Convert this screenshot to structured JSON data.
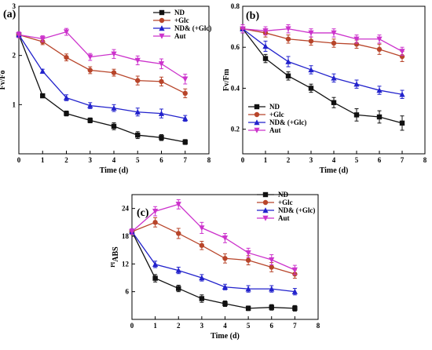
{
  "colors": {
    "ND": "#111111",
    "Glc": "#b8452a",
    "NDGlc": "#2222cc",
    "Aut": "#cc33cc"
  },
  "chart_data": [
    {
      "id": "a",
      "type": "line",
      "panel_label": "(a)",
      "xlabel": "Time (d)",
      "ylabel": "Fv/Fo",
      "xlim": [
        0,
        8
      ],
      "ylim": [
        0,
        3
      ],
      "xticks": [
        0,
        1,
        2,
        3,
        4,
        5,
        6,
        7,
        8
      ],
      "yticks": [
        1,
        2,
        3
      ],
      "legend_position": "top-right",
      "x": [
        0,
        1,
        2,
        3,
        4,
        5,
        6,
        7
      ],
      "series": [
        {
          "name": "ND",
          "key": "ND",
          "marker": "square",
          "values": [
            2.42,
            1.18,
            0.82,
            0.68,
            0.56,
            0.38,
            0.33,
            0.24
          ],
          "errors": [
            0.05,
            0.04,
            0.05,
            0.05,
            0.07,
            0.07,
            0.06,
            0.05
          ]
        },
        {
          "name": "+Glc",
          "key": "Glc",
          "marker": "circle",
          "values": [
            2.42,
            2.28,
            1.96,
            1.7,
            1.65,
            1.49,
            1.47,
            1.23
          ],
          "errors": [
            0.05,
            0.06,
            0.07,
            0.07,
            0.07,
            0.09,
            0.09,
            0.09
          ]
        },
        {
          "name": "ND& (+Glc)",
          "key": "NDGlc",
          "marker": "triangle-up",
          "values": [
            2.42,
            1.68,
            1.14,
            0.98,
            0.93,
            0.85,
            0.82,
            0.72
          ],
          "errors": [
            0.05,
            0.04,
            0.06,
            0.06,
            0.07,
            0.08,
            0.09,
            0.06
          ]
        },
        {
          "name": "Aut",
          "key": "Aut",
          "marker": "triangle-down",
          "values": [
            2.42,
            2.34,
            2.48,
            1.97,
            2.03,
            1.9,
            1.83,
            1.52
          ],
          "errors": [
            0.06,
            0.06,
            0.07,
            0.07,
            0.09,
            0.09,
            0.1,
            0.1
          ]
        }
      ]
    },
    {
      "id": "b",
      "type": "line",
      "panel_label": "(b)",
      "xlabel": "Time (d)",
      "ylabel": "Fv/Fm",
      "xlim": [
        0,
        8
      ],
      "ylim": [
        0.08,
        0.8
      ],
      "xticks": [
        0,
        1,
        2,
        3,
        4,
        5,
        6,
        7,
        8
      ],
      "yticks": [
        0.2,
        0.4,
        0.6,
        0.8
      ],
      "legend_position": "bottom-left",
      "x": [
        0,
        1,
        2,
        3,
        4,
        5,
        6,
        7
      ],
      "series": [
        {
          "name": "ND",
          "key": "ND",
          "marker": "square",
          "values": [
            0.69,
            0.545,
            0.46,
            0.4,
            0.33,
            0.27,
            0.26,
            0.23
          ],
          "errors": [
            0.02,
            0.02,
            0.02,
            0.02,
            0.025,
            0.03,
            0.03,
            0.035
          ]
        },
        {
          "name": "+Glc",
          "key": "Glc",
          "marker": "circle",
          "values": [
            0.69,
            0.67,
            0.64,
            0.63,
            0.62,
            0.615,
            0.59,
            0.555
          ],
          "errors": [
            0.02,
            0.02,
            0.02,
            0.02,
            0.02,
            0.02,
            0.025,
            0.025
          ]
        },
        {
          "name": "ND& (+Glc)",
          "key": "NDGlc",
          "marker": "triangle-up",
          "values": [
            0.69,
            0.605,
            0.53,
            0.49,
            0.45,
            0.42,
            0.39,
            0.37
          ],
          "errors": [
            0.02,
            0.025,
            0.025,
            0.02,
            0.02,
            0.02,
            0.02,
            0.02
          ]
        },
        {
          "name": "Aut",
          "key": "Aut",
          "marker": "triangle-down",
          "values": [
            0.69,
            0.68,
            0.69,
            0.67,
            0.67,
            0.64,
            0.64,
            0.58
          ],
          "errors": [
            0.02,
            0.02,
            0.02,
            0.02,
            0.02,
            0.02,
            0.02,
            0.02
          ]
        }
      ]
    },
    {
      "id": "c",
      "type": "line",
      "panel_label": "(c)",
      "xlabel": "Time (d)",
      "ylabel": "PIABS",
      "ylabel_prefix": "PI",
      "ylabel_suffix": "ABS",
      "xlim": [
        0,
        8
      ],
      "ylim": [
        0,
        27
      ],
      "xticks": [
        0,
        1,
        2,
        3,
        4,
        5,
        6,
        7,
        8
      ],
      "yticks": [
        6,
        12,
        18,
        24
      ],
      "legend_position": "top-right",
      "x": [
        0,
        1,
        2,
        3,
        4,
        5,
        6,
        7
      ],
      "series": [
        {
          "name": "ND",
          "key": "ND",
          "marker": "square",
          "values": [
            19.0,
            8.9,
            6.7,
            4.5,
            3.4,
            2.4,
            2.6,
            2.4
          ],
          "errors": [
            0.6,
            0.8,
            0.7,
            0.8,
            0.6,
            0.5,
            0.6,
            0.6
          ]
        },
        {
          "name": "+Glc",
          "key": "Glc",
          "marker": "circle",
          "values": [
            19.0,
            21.0,
            18.6,
            16.0,
            13.2,
            12.8,
            11.3,
            9.8
          ],
          "errors": [
            0.6,
            1.0,
            1.1,
            0.9,
            1.0,
            1.0,
            1.0,
            0.9
          ]
        },
        {
          "name": "ND& (+Glc)",
          "key": "NDGlc",
          "marker": "triangle-up",
          "values": [
            19.0,
            11.9,
            10.6,
            9.0,
            7.0,
            6.6,
            6.6,
            6.0
          ],
          "errors": [
            0.6,
            0.7,
            0.7,
            0.7,
            0.6,
            0.7,
            0.7,
            0.7
          ]
        },
        {
          "name": "Aut",
          "key": "Aut",
          "marker": "triangle-down",
          "values": [
            19.0,
            23.4,
            24.9,
            19.8,
            17.6,
            14.4,
            12.9,
            10.7
          ],
          "errors": [
            0.6,
            1.0,
            1.0,
            1.2,
            1.0,
            1.0,
            1.1,
            1.0
          ]
        }
      ]
    }
  ]
}
